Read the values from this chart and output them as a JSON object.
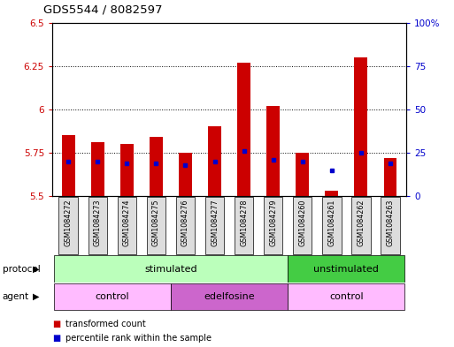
{
  "title": "GDS5544 / 8082597",
  "samples": [
    "GSM1084272",
    "GSM1084273",
    "GSM1084274",
    "GSM1084275",
    "GSM1084276",
    "GSM1084277",
    "GSM1084278",
    "GSM1084279",
    "GSM1084260",
    "GSM1084261",
    "GSM1084262",
    "GSM1084263"
  ],
  "bar_values": [
    5.85,
    5.81,
    5.8,
    5.84,
    5.75,
    5.9,
    6.27,
    6.02,
    5.75,
    5.53,
    6.3,
    5.72
  ],
  "bar_bottom": 5.5,
  "percentile_values": [
    5.7,
    5.7,
    5.69,
    5.69,
    5.68,
    5.7,
    5.76,
    5.71,
    5.7,
    5.65,
    5.75,
    5.69
  ],
  "ylim_left": [
    5.5,
    6.5
  ],
  "ylim_right": [
    0,
    100
  ],
  "yticks_left": [
    5.5,
    5.75,
    6.0,
    6.25,
    6.5
  ],
  "yticks_right": [
    0,
    25,
    50,
    75,
    100
  ],
  "ytick_labels_left": [
    "5.5",
    "5.75",
    "6",
    "6.25",
    "6.5"
  ],
  "ytick_labels_right": [
    "0",
    "25",
    "50",
    "75",
    "100%"
  ],
  "bar_color": "#cc0000",
  "percentile_color": "#0000cc",
  "bar_width": 0.45,
  "protocol_stimulated_color": "#bbffbb",
  "protocol_unstimulated_color": "#44cc44",
  "agent_control_color": "#ffbbff",
  "agent_edelfosine_color": "#cc66cc",
  "background_color": "#ffffff",
  "chart_bg_color": "#ffffff",
  "sample_bg_color": "#dddddd"
}
